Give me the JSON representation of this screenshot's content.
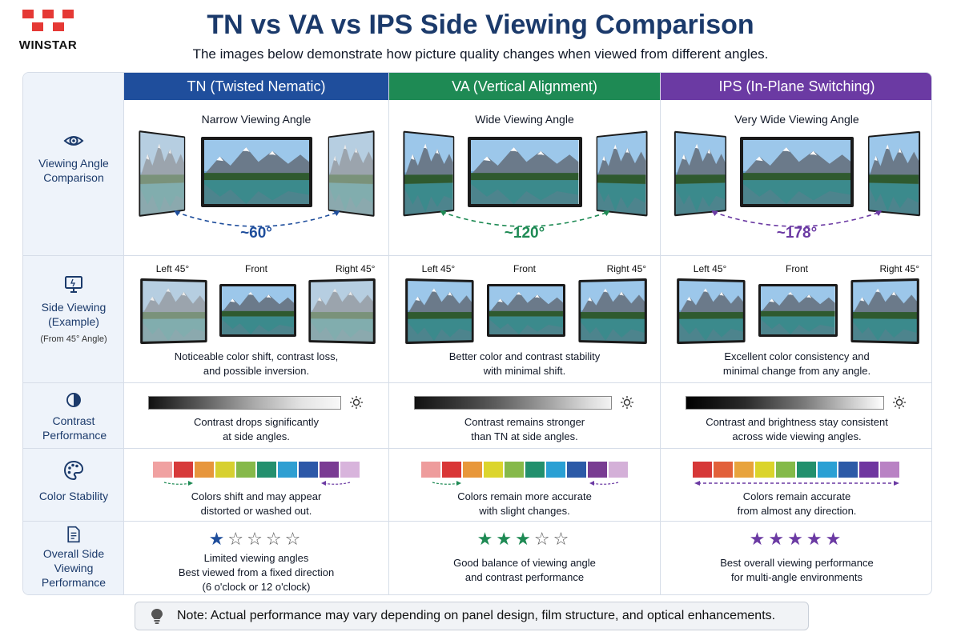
{
  "brand": {
    "name": "WINSTAR",
    "color": "#e53935"
  },
  "title": "TN vs VA vs IPS Side Viewing Comparison",
  "subtitle": "The images below demonstrate how picture quality changes when viewed from different angles.",
  "row_labels": {
    "viewing": "Viewing Angle Comparison",
    "side": "Side Viewing (Example)",
    "side_sub": "(From 45° Angle)",
    "contrast": "Contrast Performance",
    "color": "Color Stability",
    "overall": "Overall Side Viewing Performance"
  },
  "icons": {
    "viewing": "eye-icon",
    "side": "monitor-icon",
    "contrast": "contrast-icon",
    "color": "palette-icon",
    "overall": "document-icon",
    "brightness": "sun-icon",
    "note": "lightbulb-icon"
  },
  "view_labels": {
    "left": "Left 45°",
    "front": "Front",
    "right": "Right 45°"
  },
  "panels": [
    {
      "header": "TN (Twisted Nematic)",
      "color": "#1f4e9c",
      "angle_title": "Narrow Viewing Angle",
      "angle_value": "~60°",
      "side_text_1": "Noticeable color shift, contrast loss,",
      "side_text_2": "and possible inversion.",
      "contrast_text_1": "Contrast drops significantly",
      "contrast_text_2": "at side angles.",
      "color_text_1": "Colors shift and may appear",
      "color_text_2": "distorted or washed out.",
      "rating": 1,
      "overall_text_1": "Limited viewing angles",
      "overall_text_2": "Best viewed from a fixed direction",
      "overall_text_3": "(6 o'clock or 12 o'clock)"
    },
    {
      "header": "VA (Vertical Alignment)",
      "color": "#1e8a54",
      "angle_title": "Wide Viewing Angle",
      "angle_value": "~120°",
      "side_text_1": "Better color and contrast stability",
      "side_text_2": "with minimal shift.",
      "contrast_text_1": "Contrast remains stronger",
      "contrast_text_2": "than TN at side angles.",
      "color_text_1": "Colors remain more accurate",
      "color_text_2": "with slight changes.",
      "rating": 3,
      "overall_text_1": "Good balance of viewing angle",
      "overall_text_2": "and contrast performance",
      "overall_text_3": ""
    },
    {
      "header": "IPS (In-Plane Switching)",
      "color": "#6b3aa3",
      "angle_title": "Very Wide Viewing Angle",
      "angle_value": "~178°",
      "side_text_1": "Excellent color consistency and",
      "side_text_2": "minimal change from any angle.",
      "contrast_text_1": "Contrast and brightness stay consistent",
      "contrast_text_2": "across wide viewing angles.",
      "color_text_1": "Colors remain accurate",
      "color_text_2": "from almost any direction.",
      "rating": 5,
      "overall_text_1": "Best overall viewing performance",
      "overall_text_2": "for multi-angle environments",
      "overall_text_3": ""
    }
  ],
  "note": "Note: Actual performance may vary depending on panel design, film structure, and optical enhancements."
}
